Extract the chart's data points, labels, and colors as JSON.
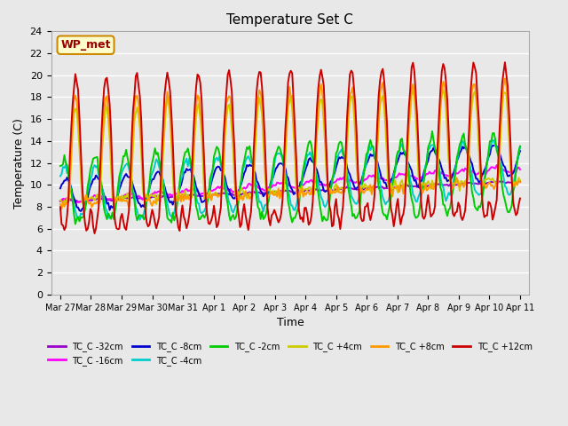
{
  "title": "Temperature Set C",
  "xlabel": "Time",
  "ylabel": "Temperature (C)",
  "ylim": [
    0,
    24
  ],
  "yticks": [
    0,
    2,
    4,
    6,
    8,
    10,
    12,
    14,
    16,
    18,
    20,
    22,
    24
  ],
  "background_color": "#e8e8e8",
  "grid_color": "#ffffff",
  "annotation_text": "WP_met",
  "annotation_bg": "#ffffcc",
  "annotation_border": "#cc8800",
  "annotation_text_color": "#990000",
  "series_colors": {
    "TC_C -32cm": "#9900cc",
    "TC_C -16cm": "#ff00ff",
    "TC_C -8cm": "#0000cc",
    "TC_C -4cm": "#00cccc",
    "TC_C -2cm": "#00cc00",
    "TC_C +4cm": "#cccc00",
    "TC_C +8cm": "#ff9900",
    "TC_C +12cm": "#cc0000"
  },
  "n_points": 336,
  "xtick_pos": [
    0,
    1,
    2,
    3,
    4,
    5,
    6,
    7,
    8,
    9,
    10,
    11,
    12,
    13,
    14,
    15
  ],
  "xtick_labels": [
    "Mar 27",
    "Mar 28",
    "Mar 29",
    "Mar 30",
    "Mar 31",
    "Apr 1",
    "Apr 2",
    "Apr 3",
    "Apr 4",
    "Apr 5",
    "Apr 6",
    "Apr 7",
    "Apr 8",
    "Apr 9",
    "Apr 10",
    "Apr 11"
  ],
  "legend_ncol": 6
}
